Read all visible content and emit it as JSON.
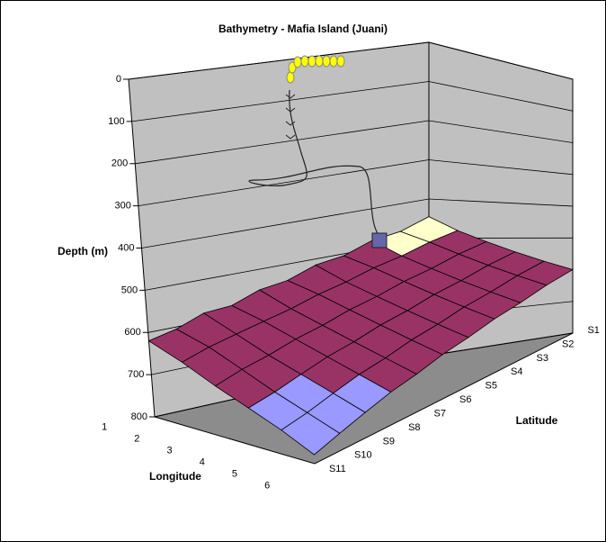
{
  "chart_data": {
    "type": "surface",
    "title": "Bathymetry - Mafia Island (Juani)",
    "y_label": "Depth (m)",
    "x_label": "Longitude",
    "z_label": "Latitude",
    "x_categories": [
      "1",
      "2",
      "3",
      "4",
      "5",
      "6"
    ],
    "z_categories": [
      "S1",
      "S2",
      "S3",
      "S4",
      "S5",
      "S6",
      "S7",
      "S8",
      "S9",
      "S10",
      "S11"
    ],
    "values": [
      [
        445,
        470,
        480,
        505,
        515,
        540,
        550,
        575,
        580,
        605,
        620
      ],
      [
        480,
        495,
        515,
        530,
        550,
        565,
        585,
        600,
        615,
        630,
        650
      ],
      [
        510,
        525,
        545,
        560,
        580,
        595,
        615,
        630,
        650,
        665,
        685
      ],
      [
        540,
        555,
        575,
        590,
        610,
        625,
        645,
        660,
        680,
        700,
        715
      ],
      [
        570,
        585,
        605,
        620,
        640,
        655,
        675,
        690,
        710,
        730,
        745
      ],
      [
        600,
        615,
        635,
        650,
        670,
        685,
        705,
        720,
        740,
        760,
        780
      ]
    ],
    "ylim": [
      0,
      800
    ],
    "reversed": true,
    "yticks": [
      0,
      100,
      200,
      300,
      400,
      500,
      600,
      700,
      800
    ],
    "band_colors": [
      "#ffffcc",
      "#ffffcc",
      "#ffffcc",
      "#ffffcc",
      "#ffffcc",
      "#993366",
      "#993366",
      "#9999ff"
    ],
    "grid": true
  }
}
